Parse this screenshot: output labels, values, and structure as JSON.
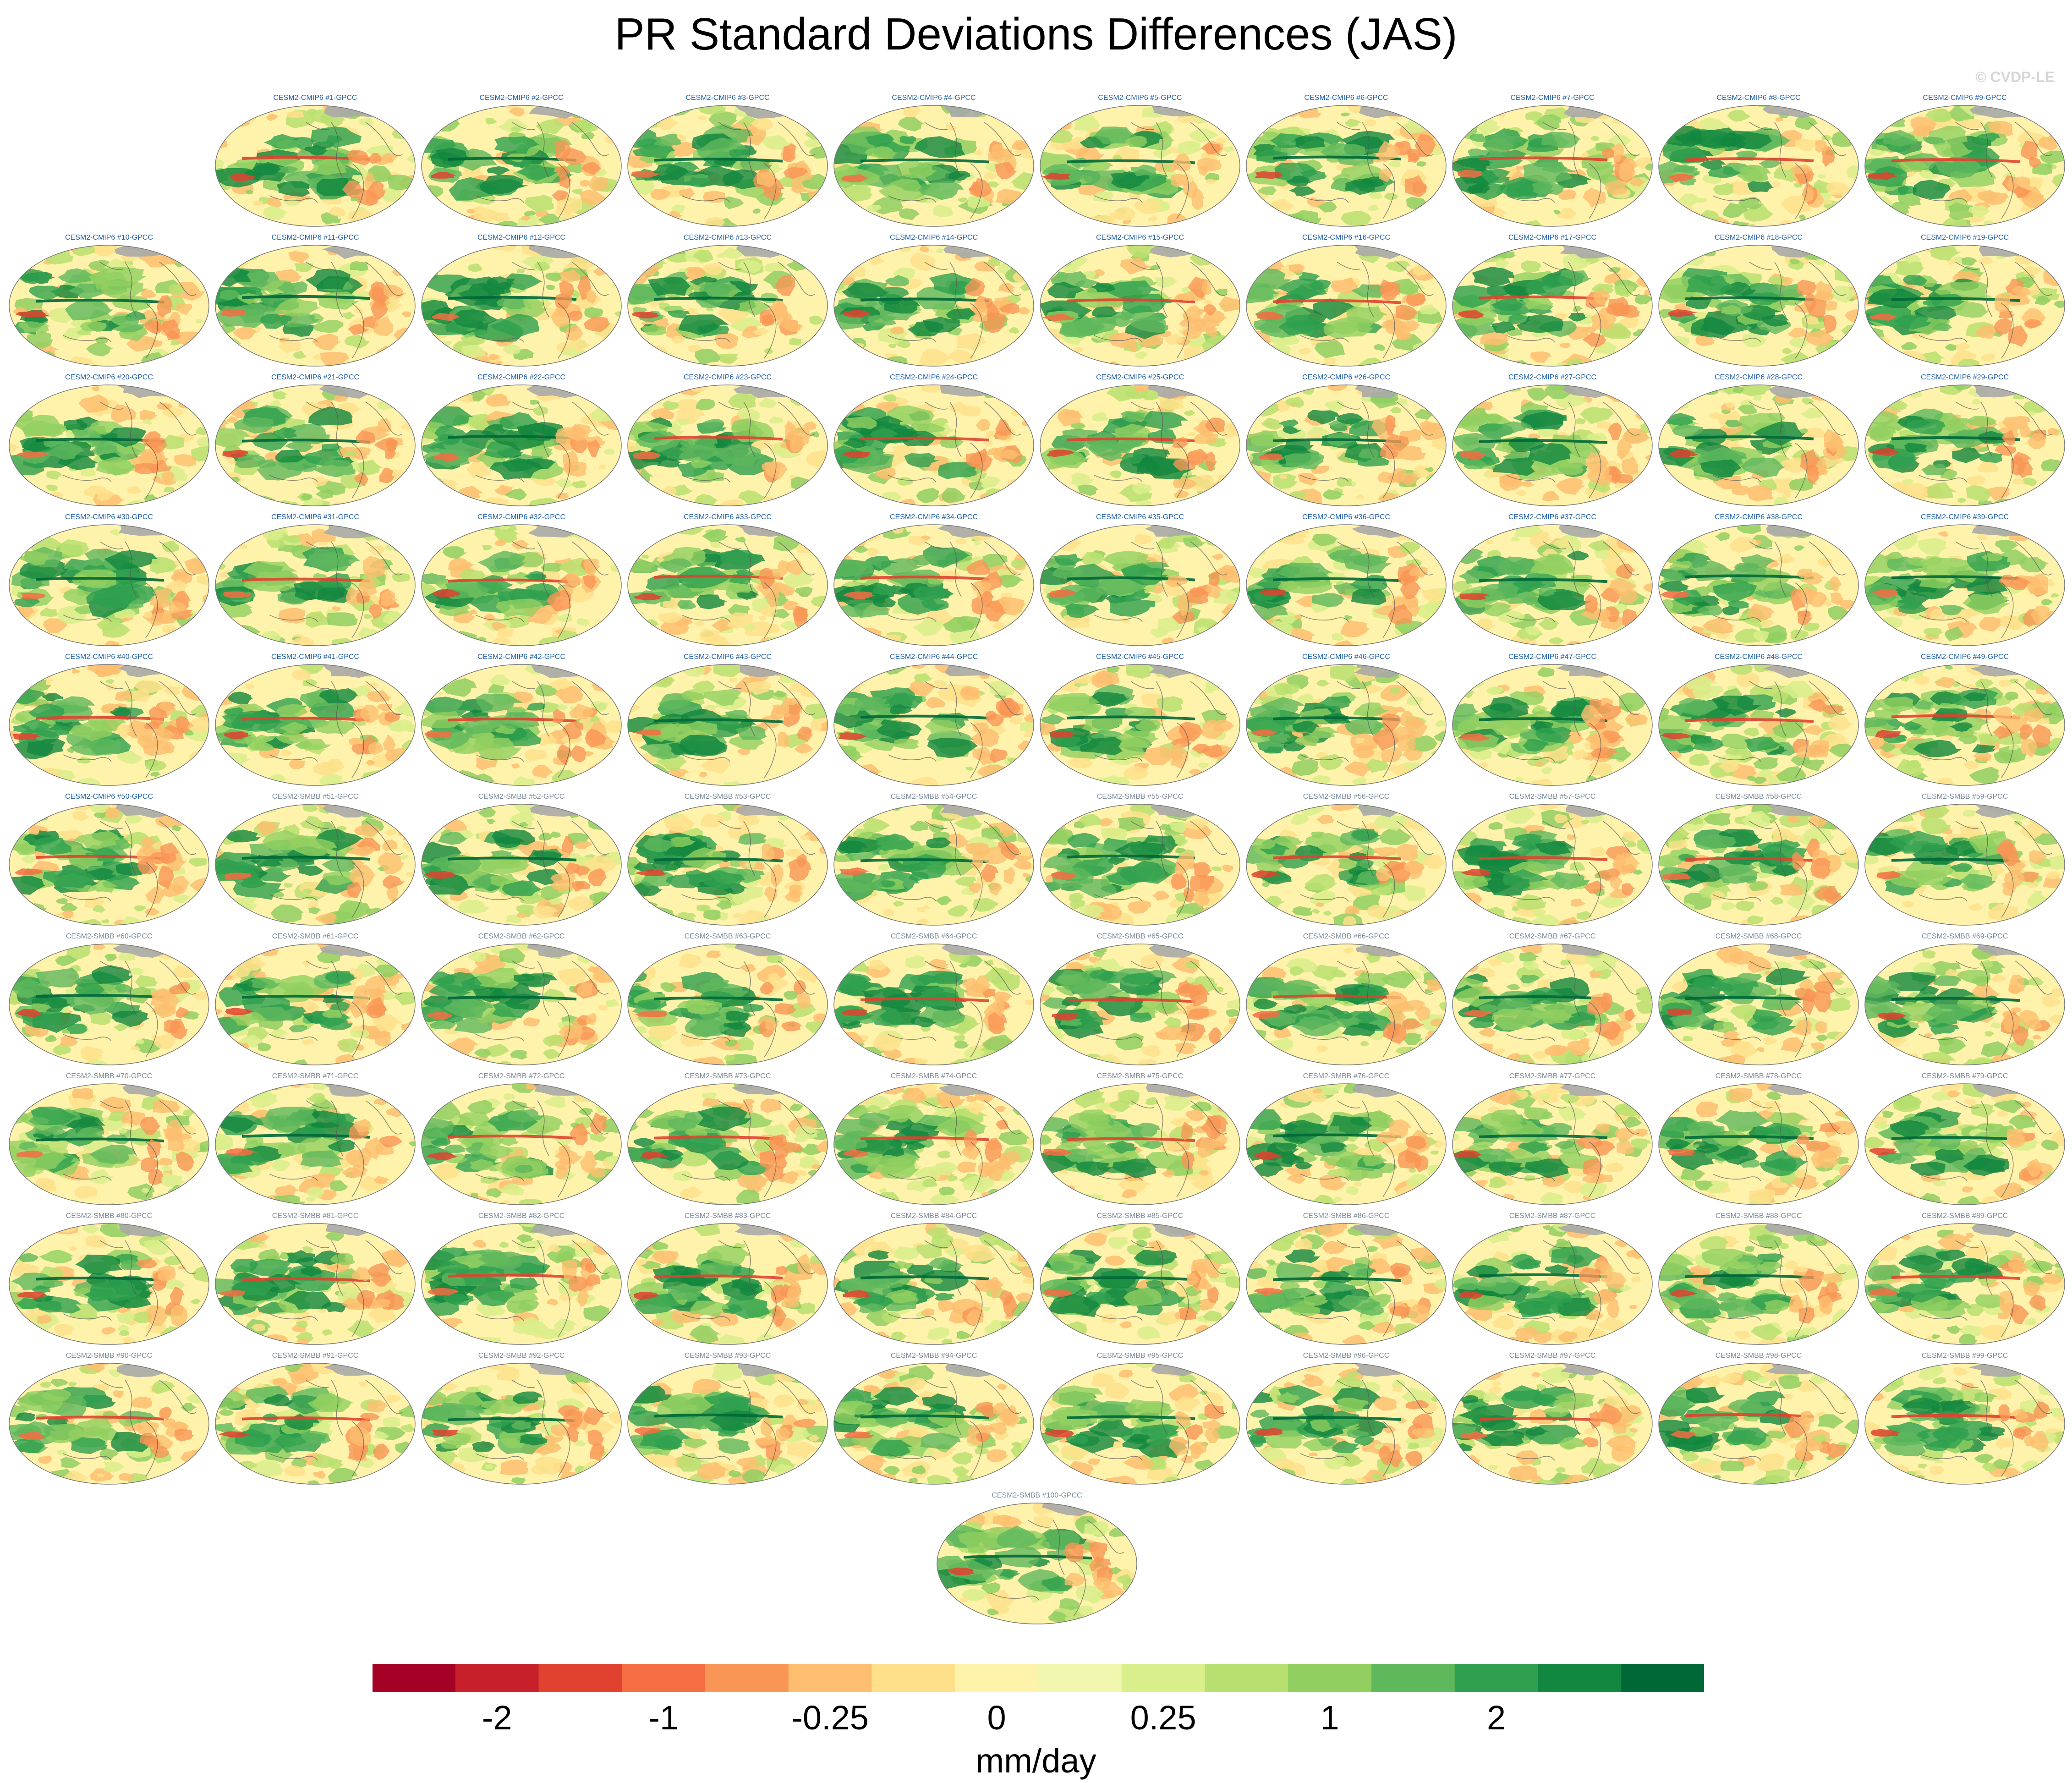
{
  "title": "PR Standard Deviations Differences (JAS)",
  "watermark": "© CVDP-LE",
  "chart_data": {
    "type": "heatmap",
    "title": "PR Standard Deviations Differences (JAS)",
    "description_kind": "grid of global maps, one per ensemble member minus observations",
    "variable": "PR",
    "season": "JAS",
    "projection": "global",
    "panels": [
      "CESM2-CMIP6 #1-GPCC",
      "CESM2-CMIP6 #2-GPCC",
      "CESM2-CMIP6 #3-GPCC",
      "CESM2-CMIP6 #4-GPCC",
      "CESM2-CMIP6 #5-GPCC",
      "CESM2-CMIP6 #6-GPCC",
      "CESM2-CMIP6 #7-GPCC",
      "CESM2-CMIP6 #8-GPCC",
      "CESM2-CMIP6 #9-GPCC",
      "CESM2-CMIP6 #10-GPCC",
      "CESM2-CMIP6 #11-GPCC",
      "CESM2-CMIP6 #12-GPCC",
      "CESM2-CMIP6 #13-GPCC",
      "CESM2-CMIP6 #14-GPCC",
      "CESM2-CMIP6 #15-GPCC",
      "CESM2-CMIP6 #16-GPCC",
      "CESM2-CMIP6 #17-GPCC",
      "CESM2-CMIP6 #18-GPCC",
      "CESM2-CMIP6 #19-GPCC",
      "CESM2-CMIP6 #20-GPCC",
      "CESM2-CMIP6 #21-GPCC",
      "CESM2-CMIP6 #22-GPCC",
      "CESM2-CMIP6 #23-GPCC",
      "CESM2-CMIP6 #24-GPCC",
      "CESM2-CMIP6 #25-GPCC",
      "CESM2-CMIP6 #26-GPCC",
      "CESM2-CMIP6 #27-GPCC",
      "CESM2-CMIP6 #28-GPCC",
      "CESM2-CMIP6 #29-GPCC",
      "CESM2-CMIP6 #30-GPCC",
      "CESM2-CMIP6 #31-GPCC",
      "CESM2-CMIP6 #32-GPCC",
      "CESM2-CMIP6 #33-GPCC",
      "CESM2-CMIP6 #34-GPCC",
      "CESM2-CMIP6 #35-GPCC",
      "CESM2-CMIP6 #36-GPCC",
      "CESM2-CMIP6 #37-GPCC",
      "CESM2-CMIP6 #38-GPCC",
      "CESM2-CMIP6 #39-GPCC",
      "CESM2-CMIP6 #40-GPCC",
      "CESM2-CMIP6 #41-GPCC",
      "CESM2-CMIP6 #42-GPCC",
      "CESM2-CMIP6 #43-GPCC",
      "CESM2-CMIP6 #44-GPCC",
      "CESM2-CMIP6 #45-GPCC",
      "CESM2-CMIP6 #46-GPCC",
      "CESM2-CMIP6 #47-GPCC",
      "CESM2-CMIP6 #48-GPCC",
      "CESM2-CMIP6 #49-GPCC",
      "CESM2-CMIP6 #50-GPCC",
      "CESM2-SMBB #51-GPCC",
      "CESM2-SMBB #52-GPCC",
      "CESM2-SMBB #53-GPCC",
      "CESM2-SMBB #54-GPCC",
      "CESM2-SMBB #55-GPCC",
      "CESM2-SMBB #56-GPCC",
      "CESM2-SMBB #57-GPCC",
      "CESM2-SMBB #58-GPCC",
      "CESM2-SMBB #59-GPCC",
      "CESM2-SMBB #60-GPCC",
      "CESM2-SMBB #61-GPCC",
      "CESM2-SMBB #62-GPCC",
      "CESM2-SMBB #63-GPCC",
      "CESM2-SMBB #64-GPCC",
      "CESM2-SMBB #65-GPCC",
      "CESM2-SMBB #66-GPCC",
      "CESM2-SMBB #67-GPCC",
      "CESM2-SMBB #68-GPCC",
      "CESM2-SMBB #69-GPCC",
      "CESM2-SMBB #70-GPCC",
      "CESM2-SMBB #71-GPCC",
      "CESM2-SMBB #72-GPCC",
      "CESM2-SMBB #73-GPCC",
      "CESM2-SMBB #74-GPCC",
      "CESM2-SMBB #75-GPCC",
      "CESM2-SMBB #76-GPCC",
      "CESM2-SMBB #77-GPCC",
      "CESM2-SMBB #78-GPCC",
      "CESM2-SMBB #79-GPCC",
      "CESM2-SMBB #80-GPCC",
      "CESM2-SMBB #81-GPCC",
      "CESM2-SMBB #82-GPCC",
      "CESM2-SMBB #83-GPCC",
      "CESM2-SMBB #84-GPCC",
      "CESM2-SMBB #85-GPCC",
      "CESM2-SMBB #86-GPCC",
      "CESM2-SMBB #87-GPCC",
      "CESM2-SMBB #88-GPCC",
      "CESM2-SMBB #89-GPCC",
      "CESM2-SMBB #90-GPCC",
      "CESM2-SMBB #91-GPCC",
      "CESM2-SMBB #92-GPCC",
      "CESM2-SMBB #93-GPCC",
      "CESM2-SMBB #94-GPCC",
      "CESM2-SMBB #95-GPCC",
      "CESM2-SMBB #96-GPCC",
      "CESM2-SMBB #97-GPCC",
      "CESM2-SMBB #98-GPCC",
      "CESM2-SMBB #99-GPCC",
      "CESM2-SMBB #100-GPCC"
    ],
    "colorbar": {
      "colors": [
        "#a50026",
        "#c8202a",
        "#e0422f",
        "#f46d43",
        "#f99555",
        "#fdbe6f",
        "#fee08b",
        "#fff2ab",
        "#f2f7b0",
        "#d9ef8b",
        "#b8e070",
        "#91cf60",
        "#5fb85c",
        "#2ea04f",
        "#11873f",
        "#006837"
      ],
      "labels": [
        "-2",
        "-1",
        "-0.25",
        "0",
        "0.25",
        "1",
        "2"
      ],
      "label_boundaries": [
        2,
        4,
        6,
        8,
        10,
        12,
        14
      ],
      "units": "mm/day"
    }
  }
}
